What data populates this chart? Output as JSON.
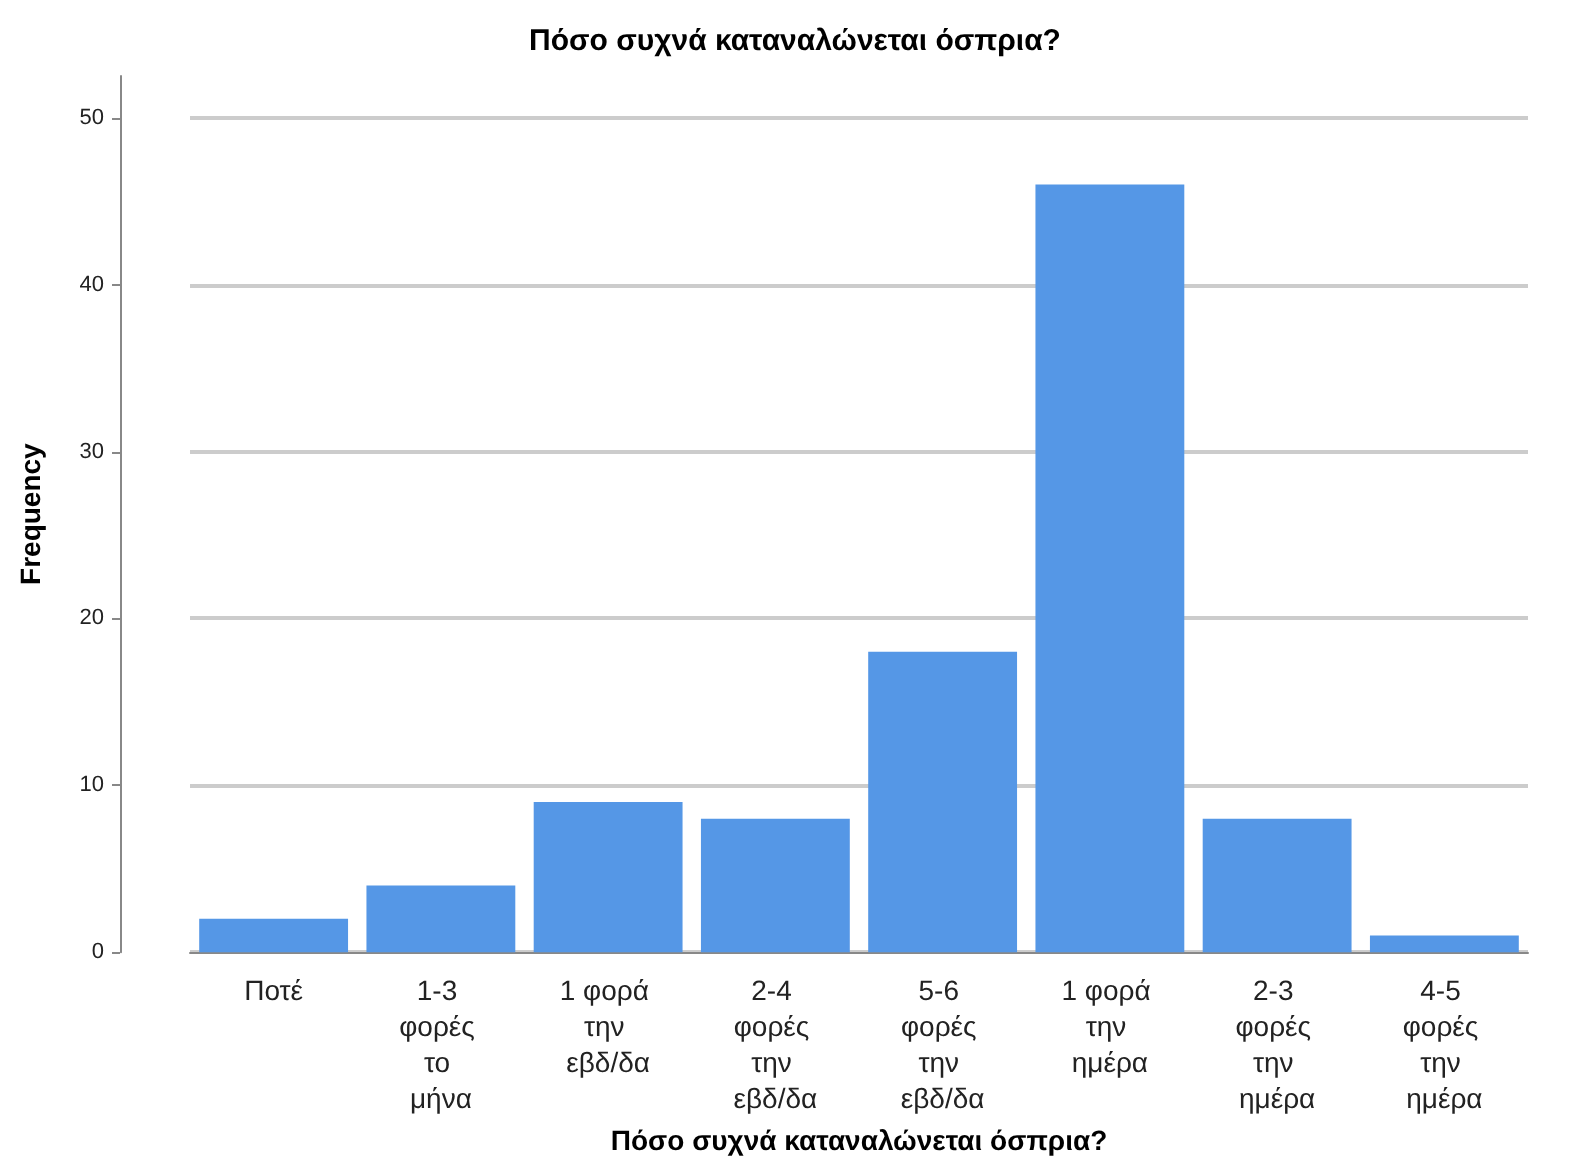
{
  "chart_data": {
    "type": "bar",
    "title": "Πόσο συχνά καταναλώνεται όσπρια?",
    "xlabel": "Πόσο συχνά καταναλώνεται όσπρια?",
    "ylabel": "Frequency",
    "categories": [
      "Ποτέ",
      "1-3 φορές το μήνα",
      "1 φορά την εβδ/δα",
      "2-4 φορές την εβδ/δα",
      "5-6 φορές την εβδ/δα",
      "1 φορά την ημέρα",
      "2-3 φορές την ημέρα",
      "4-5 φορές την ημέρα"
    ],
    "values": [
      2,
      4,
      9,
      8,
      18,
      46,
      8,
      1
    ],
    "color": "#5597e6",
    "ylim": [
      0,
      52.5
    ],
    "yticks": [
      0,
      10,
      20,
      30,
      40,
      50
    ],
    "grid": "y"
  }
}
